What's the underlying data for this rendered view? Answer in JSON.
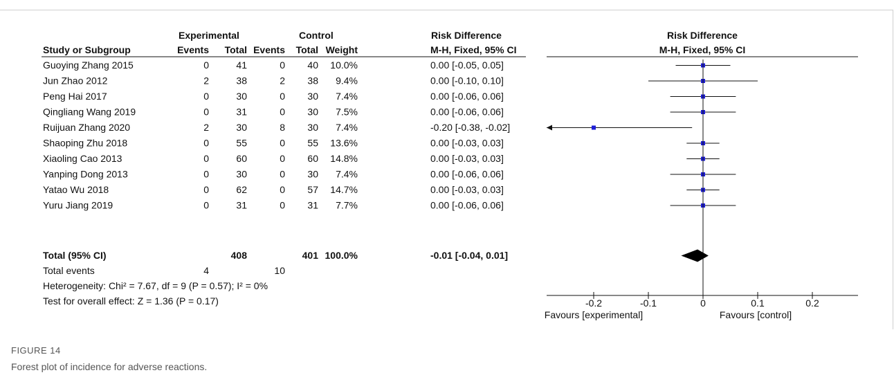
{
  "figure": {
    "label": "FIGURE 14",
    "caption": "Forest plot of incidence for adverse reactions."
  },
  "table": {
    "group_headers": {
      "experimental": "Experimental",
      "control": "Control",
      "effect": "Risk Difference"
    },
    "col_headers": {
      "study": "Study or Subgroup",
      "exp_events": "Events",
      "exp_total": "Total",
      "ctl_events": "Events",
      "ctl_total": "Total",
      "weight": "Weight",
      "method": "M-H, Fixed, 95% CI"
    },
    "total": {
      "label": "Total (95% CI)",
      "exp_total": "408",
      "ctl_total": "401",
      "weight": "100.0%",
      "ci_text": "-0.01 [-0.04, 0.01]"
    },
    "total_events": {
      "label": "Total events",
      "exp": "4",
      "ctl": "10"
    },
    "heterogeneity": "Heterogeneity: Chi² = 7.67, df = 9 (P = 0.57); I² = 0%",
    "overall_effect": "Test for overall effect: Z = 1.36 (P = 0.17)"
  },
  "chart_data": {
    "type": "scatter",
    "title": "Risk Difference",
    "subtitle": "M-H, Fixed, 95% CI",
    "xlim": [
      -0.25,
      0.25
    ],
    "x_ticks": [
      "-0.2",
      "-0.1",
      "0",
      "0.1",
      "0.2"
    ],
    "x_tick_values": [
      -0.2,
      -0.1,
      0,
      0.1,
      0.2
    ],
    "x_labels": {
      "left": "Favours [experimental]",
      "right": "Favours [control]"
    },
    "marker_color": "#1f1fd6",
    "studies": [
      {
        "name": "Guoying Zhang 2015",
        "exp_events": "0",
        "exp_total": "41",
        "ctl_events": "0",
        "ctl_total": "40",
        "weight": "10.0%",
        "ci_text": "0.00 [-0.05, 0.05]",
        "rd": 0.0,
        "lo": -0.05,
        "hi": 0.05
      },
      {
        "name": "Jun Zhao 2012",
        "exp_events": "2",
        "exp_total": "38",
        "ctl_events": "2",
        "ctl_total": "38",
        "weight": "9.4%",
        "ci_text": "0.00 [-0.10, 0.10]",
        "rd": 0.0,
        "lo": -0.1,
        "hi": 0.1
      },
      {
        "name": "Peng Hai 2017",
        "exp_events": "0",
        "exp_total": "30",
        "ctl_events": "0",
        "ctl_total": "30",
        "weight": "7.4%",
        "ci_text": "0.00 [-0.06, 0.06]",
        "rd": 0.0,
        "lo": -0.06,
        "hi": 0.06
      },
      {
        "name": "Qingliang Wang 2019",
        "exp_events": "0",
        "exp_total": "31",
        "ctl_events": "0",
        "ctl_total": "30",
        "weight": "7.5%",
        "ci_text": "0.00 [-0.06, 0.06]",
        "rd": 0.0,
        "lo": -0.06,
        "hi": 0.06
      },
      {
        "name": "Ruijuan Zhang 2020",
        "exp_events": "2",
        "exp_total": "30",
        "ctl_events": "8",
        "ctl_total": "30",
        "weight": "7.4%",
        "ci_text": "-0.20 [-0.38, -0.02]",
        "rd": -0.2,
        "lo": -0.38,
        "hi": -0.02
      },
      {
        "name": "Shaoping Zhu 2018",
        "exp_events": "0",
        "exp_total": "55",
        "ctl_events": "0",
        "ctl_total": "55",
        "weight": "13.6%",
        "ci_text": "0.00 [-0.03, 0.03]",
        "rd": 0.0,
        "lo": -0.03,
        "hi": 0.03
      },
      {
        "name": "Xiaoling Cao 2013",
        "exp_events": "0",
        "exp_total": "60",
        "ctl_events": "0",
        "ctl_total": "60",
        "weight": "14.8%",
        "ci_text": "0.00 [-0.03, 0.03]",
        "rd": 0.0,
        "lo": -0.03,
        "hi": 0.03
      },
      {
        "name": "Yanping Dong 2013",
        "exp_events": "0",
        "exp_total": "30",
        "ctl_events": "0",
        "ctl_total": "30",
        "weight": "7.4%",
        "ci_text": "0.00 [-0.06, 0.06]",
        "rd": 0.0,
        "lo": -0.06,
        "hi": 0.06
      },
      {
        "name": "Yatao Wu 2018",
        "exp_events": "0",
        "exp_total": "62",
        "ctl_events": "0",
        "ctl_total": "57",
        "weight": "14.7%",
        "ci_text": "0.00 [-0.03, 0.03]",
        "rd": 0.0,
        "lo": -0.03,
        "hi": 0.03
      },
      {
        "name": "Yuru Jiang 2019",
        "exp_events": "0",
        "exp_total": "31",
        "ctl_events": "0",
        "ctl_total": "31",
        "weight": "7.7%",
        "ci_text": "0.00 [-0.06, 0.06]",
        "rd": 0.0,
        "lo": -0.06,
        "hi": 0.06
      }
    ],
    "pooled": {
      "rd": -0.01,
      "lo": -0.04,
      "hi": 0.01
    }
  }
}
